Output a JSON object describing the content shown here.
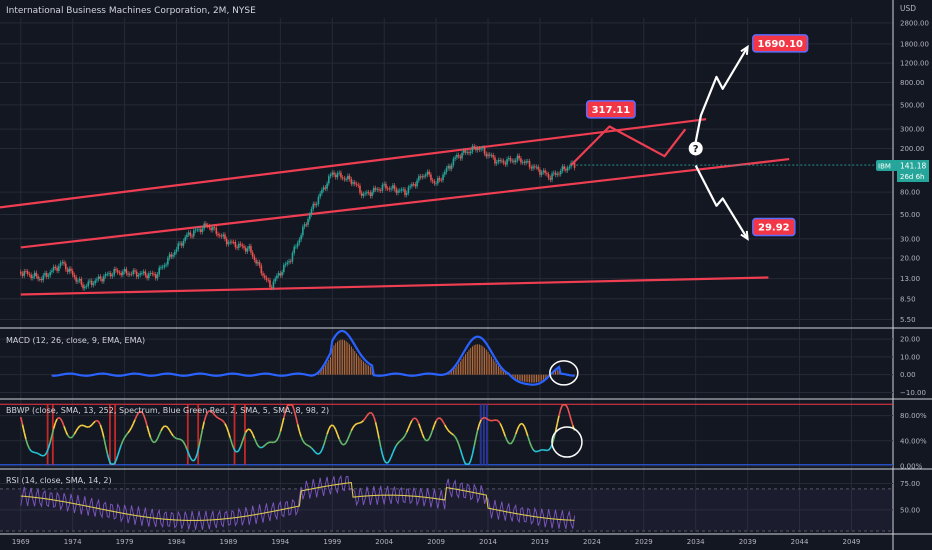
{
  "header": {
    "title": "International Business Machines Corporation, 2M, NYSE"
  },
  "currency": "USD",
  "colors": {
    "bg": "#131722",
    "grid": "#262a36",
    "up": "#26a69a",
    "down": "#ef5350",
    "trend": "#ef3e52",
    "white": "#ffffff",
    "tag": "#f23645",
    "macd": "#2962ff",
    "hist": "#c7743c",
    "rsi": "#7e57c2",
    "rsi_ma": "#d9c74e"
  },
  "price_axis": [
    "1800.00",
    "1200.00",
    "800.00",
    "500.00",
    "300.00",
    "200.00",
    "141.18",
    "80.00",
    "50.00",
    "30.00",
    "20.00",
    "13.00",
    "8.50",
    "5.50"
  ],
  "price_axis_main": [
    "2800.00",
    "1800.00",
    "1200.00",
    "800.00",
    "500.00",
    "300.00",
    "200.00",
    "80.00",
    "50.00",
    "30.00",
    "20.00",
    "13.00",
    "8.50",
    "5.50"
  ],
  "price_ticks": [
    2800,
    1800,
    1200,
    800,
    500,
    300,
    200,
    80,
    50,
    30,
    20,
    13,
    8.5,
    5.5
  ],
  "last_price": {
    "ticker": "IBM",
    "value": "141.18",
    "countdown": "26d 6h"
  },
  "targets": [
    {
      "label": "1690.10",
      "value": 1690.1
    },
    {
      "label": "317.11",
      "value": 317.11
    },
    {
      "label": "29.92",
      "value": 29.92
    }
  ],
  "question_mark": "?",
  "x_axis": [
    "1969",
    "1974",
    "1979",
    "1984",
    "1989",
    "1994",
    "1999",
    "2004",
    "2009",
    "2014",
    "2019",
    "2024",
    "2029",
    "2034",
    "2039",
    "2044",
    "2049"
  ],
  "macd": {
    "label": "MACD (12, 26, close, 9, EMA, EMA)",
    "axis": [
      "20.00",
      "10.00",
      "0.00",
      "−10.00"
    ],
    "ticks": [
      20,
      10,
      0,
      -10
    ]
  },
  "bbwp": {
    "label": "BBWP (close, SMA, 13, 252, Spectrum, Blue Green Red, 2, SMA, 5, SMA, 8, 98, 2)",
    "axis": [
      "80.00%",
      "40.00%",
      "0.00%"
    ],
    "ticks": [
      80,
      40,
      0
    ]
  },
  "rsi": {
    "label": "RSI (14, close, SMA, 14, 2)",
    "axis": [
      "75.00",
      "50.00"
    ],
    "ticks": [
      75,
      50
    ]
  },
  "chart_data": {
    "type": "line",
    "title": "International Business Machines Corporation, 2M, NYSE",
    "y_scale": "log",
    "ylim": [
      4.8,
      3100
    ],
    "xlim": [
      1967,
      2053
    ],
    "price_path": [
      [
        1969,
        15
      ],
      [
        1971,
        13
      ],
      [
        1973,
        18
      ],
      [
        1975,
        11
      ],
      [
        1978,
        15
      ],
      [
        1982,
        14
      ],
      [
        1985,
        32
      ],
      [
        1987,
        40
      ],
      [
        1989,
        28
      ],
      [
        1991,
        24
      ],
      [
        1993,
        11
      ],
      [
        1995,
        20
      ],
      [
        1997,
        55
      ],
      [
        1999,
        120
      ],
      [
        2001,
        100
      ],
      [
        2002,
        75
      ],
      [
        2004,
        90
      ],
      [
        2006,
        80
      ],
      [
        2008,
        120
      ],
      [
        2009,
        95
      ],
      [
        2011,
        170
      ],
      [
        2013,
        205
      ],
      [
        2015,
        150
      ],
      [
        2017,
        160
      ],
      [
        2019,
        125
      ],
      [
        2020,
        110
      ],
      [
        2022,
        141.18
      ]
    ],
    "projection_red": [
      [
        2022,
        141
      ],
      [
        2025.7,
        317.11
      ],
      [
        2031,
        170
      ],
      [
        2033,
        300
      ]
    ],
    "projection_white_up": [
      [
        2034,
        230
      ],
      [
        2034.5,
        400
      ],
      [
        2036,
        900
      ],
      [
        2036.6,
        700
      ],
      [
        2039,
        1690.1
      ]
    ],
    "projection_white_down": [
      [
        2034,
        140
      ],
      [
        2036,
        60
      ],
      [
        2036.6,
        70
      ],
      [
        2039,
        29.92
      ]
    ],
    "trendlines": [
      {
        "points": [
          [
            1967,
            58
          ],
          [
            2035,
            370
          ]
        ]
      },
      {
        "points": [
          [
            1969,
            25
          ],
          [
            2043,
            160
          ]
        ]
      },
      {
        "points": [
          [
            1969,
            9.3
          ],
          [
            2041,
            13.3
          ]
        ]
      }
    ]
  }
}
